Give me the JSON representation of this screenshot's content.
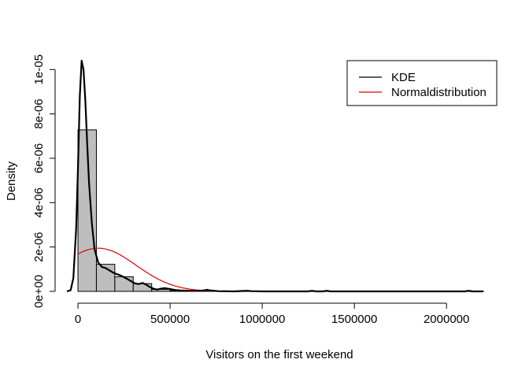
{
  "chart_data": {
    "type": "histogram",
    "title": "",
    "xlabel": "Visitors on the first weekend",
    "ylabel": "Density",
    "xlim": [
      -60000,
      2200000
    ],
    "ylim": [
      0,
      1.04e-05
    ],
    "x_ticks": [
      0,
      500000,
      1000000,
      1500000,
      2000000
    ],
    "x_tick_labels": [
      "0",
      "500000",
      "1000000",
      "1500000",
      "2000000"
    ],
    "y_ticks": [
      0,
      2e-06,
      4e-06,
      6e-06,
      8e-06,
      1e-05
    ],
    "y_tick_labels": [
      "0e+00",
      "2e-06",
      "4e-06",
      "6e-06",
      "8e-06",
      "1e-05"
    ],
    "grid": false,
    "legend_position": "top-right",
    "histogram": {
      "bin_width": 100000,
      "bins": [
        {
          "x0": 0,
          "x1": 100000,
          "density": 7.28e-06
        },
        {
          "x0": 100000,
          "x1": 200000,
          "density": 1.22e-06
        },
        {
          "x0": 200000,
          "x1": 300000,
          "density": 6.6e-07
        },
        {
          "x0": 300000,
          "x1": 400000,
          "density": 3.5e-07
        },
        {
          "x0": 400000,
          "x1": 500000,
          "density": 9e-08
        },
        {
          "x0": 500000,
          "x1": 600000,
          "density": 3e-08
        },
        {
          "x0": 600000,
          "x1": 700000,
          "density": 1e-08
        },
        {
          "x0": 700000,
          "x1": 800000,
          "density": 1e-08
        },
        {
          "x0": 800000,
          "x1": 900000,
          "density": 0.0
        },
        {
          "x0": 900000,
          "x1": 1000000,
          "density": 1e-08
        },
        {
          "x0": 1000000,
          "x1": 1100000,
          "density": 0.0
        },
        {
          "x0": 1100000,
          "x1": 1200000,
          "density": 0.0
        },
        {
          "x0": 1200000,
          "x1": 1300000,
          "density": 1e-08
        },
        {
          "x0": 1300000,
          "x1": 1400000,
          "density": 1e-08
        },
        {
          "x0": 1400000,
          "x1": 1500000,
          "density": 0.0
        },
        {
          "x0": 1500000,
          "x1": 1600000,
          "density": 0.0
        },
        {
          "x0": 1600000,
          "x1": 1700000,
          "density": 0.0
        },
        {
          "x0": 1700000,
          "x1": 1800000,
          "density": 0.0
        },
        {
          "x0": 1800000,
          "x1": 1900000,
          "density": 0.0
        },
        {
          "x0": 1900000,
          "x1": 2000000,
          "density": 0.0
        },
        {
          "x0": 2000000,
          "x1": 2100000,
          "density": 0.0
        },
        {
          "x0": 2100000,
          "x1": 2200000,
          "density": 1e-08
        }
      ]
    },
    "series": [
      {
        "name": "KDE",
        "color": "#000000",
        "points": [
          [
            -60000,
            0.0
          ],
          [
            -40000,
            5e-08
          ],
          [
            -25000,
            6e-07
          ],
          [
            -10000,
            2.8e-06
          ],
          [
            0,
            5.5e-06
          ],
          [
            10000,
            8.8e-06
          ],
          [
            20000,
            1.04e-05
          ],
          [
            30000,
            1e-05
          ],
          [
            40000,
            8.6e-06
          ],
          [
            50000,
            6.7e-06
          ],
          [
            60000,
            4.9e-06
          ],
          [
            75000,
            3.1e-06
          ],
          [
            90000,
            1.9e-06
          ],
          [
            110000,
            1.3e-06
          ],
          [
            130000,
            1.1e-06
          ],
          [
            150000,
            1.05e-06
          ],
          [
            170000,
            9.5e-07
          ],
          [
            190000,
            8.5e-07
          ],
          [
            210000,
            7.8e-07
          ],
          [
            230000,
            7.2e-07
          ],
          [
            250000,
            6.4e-07
          ],
          [
            270000,
            5.5e-07
          ],
          [
            290000,
            4.5e-07
          ],
          [
            310000,
            3.6e-07
          ],
          [
            330000,
            3.3e-07
          ],
          [
            350000,
            3.8e-07
          ],
          [
            370000,
            3e-07
          ],
          [
            390000,
            2e-07
          ],
          [
            410000,
            1.2e-07
          ],
          [
            430000,
            8e-08
          ],
          [
            450000,
            1.2e-07
          ],
          [
            470000,
            1.5e-07
          ],
          [
            490000,
            1.2e-07
          ],
          [
            510000,
            9e-08
          ],
          [
            530000,
            6e-08
          ],
          [
            560000,
            4e-08
          ],
          [
            600000,
            3e-08
          ],
          [
            640000,
            2e-08
          ],
          [
            680000,
            4e-08
          ],
          [
            700000,
            7e-08
          ],
          [
            720000,
            4e-08
          ],
          [
            760000,
            1e-08
          ],
          [
            850000,
            0.0
          ],
          [
            900000,
            2e-08
          ],
          [
            920000,
            3e-08
          ],
          [
            940000,
            1e-08
          ],
          [
            1000000,
            0.0
          ],
          [
            1250000,
            0.0
          ],
          [
            1270000,
            3e-08
          ],
          [
            1290000,
            0.0
          ],
          [
            1330000,
            0.0
          ],
          [
            1350000,
            3e-08
          ],
          [
            1370000,
            0.0
          ],
          [
            2100000,
            0.0
          ],
          [
            2120000,
            3e-08
          ],
          [
            2140000,
            0.0
          ],
          [
            2200000,
            0.0
          ]
        ]
      },
      {
        "name": "Normaldistribution",
        "color": "#e00000",
        "normal": {
          "mean": 110000,
          "sd": 205000
        },
        "range": [
          0,
          2200000
        ]
      }
    ]
  }
}
